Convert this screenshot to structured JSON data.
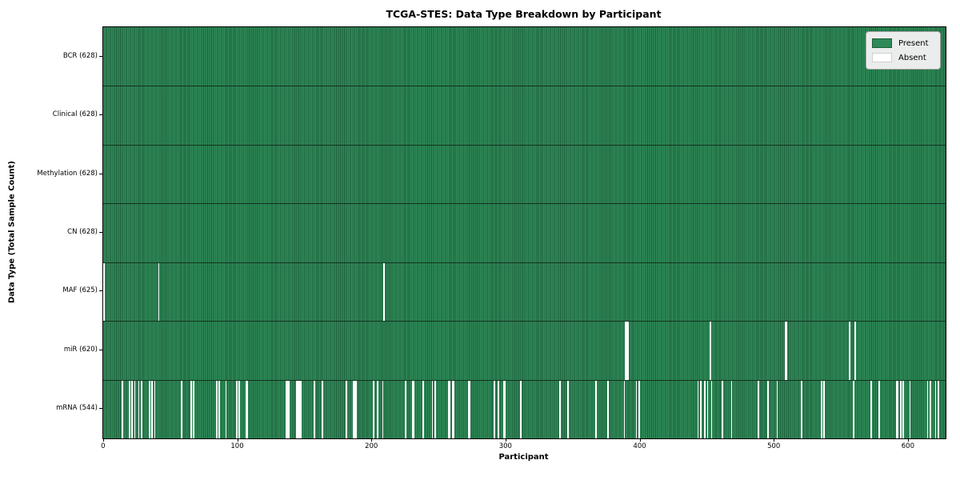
{
  "title": "TCGA-STES: Data Type Breakdown by Participant",
  "xlabel": "Participant",
  "ylabel": "Data Type (Total Sample Count)",
  "legend": {
    "present_label": "Present",
    "absent_label": "Absent"
  },
  "colors": {
    "present": "#2e8b57",
    "present_edge": "#1e5e3c",
    "absent": "#ffffff",
    "row_separator": "#14311f",
    "legend_bg": "#ebedec"
  },
  "chart_data": {
    "type": "heatmap",
    "title": "TCGA-STES: Data Type Breakdown by Participant",
    "xlabel": "Participant",
    "ylabel": "Data Type (Total Sample Count)",
    "legend_entries": [
      "Present",
      "Absent"
    ],
    "legend_position": "upper right",
    "x_ticks": [
      0,
      100,
      200,
      300,
      400,
      500,
      600
    ],
    "x_range": [
      -0.5,
      627.5
    ],
    "total_participants": 628,
    "rows": [
      {
        "name": "BCR",
        "label": "BCR (628)",
        "present_count": 628,
        "absent": []
      },
      {
        "name": "Clinical",
        "label": "Clinical (628)",
        "present_count": 628,
        "absent": []
      },
      {
        "name": "Methylation",
        "label": "Methylation (628)",
        "present_count": 628,
        "absent": []
      },
      {
        "name": "CN",
        "label": "CN (628)",
        "present_count": 628,
        "absent": []
      },
      {
        "name": "MAF",
        "label": "MAF (625)",
        "present_count": 625,
        "absent": [
          0,
          41,
          209
        ]
      },
      {
        "name": "miR",
        "label": "miR (620)",
        "present_count": 620,
        "absent": [
          389,
          390,
          391,
          452,
          508,
          509,
          556,
          560
        ]
      },
      {
        "name": "mRNA",
        "label": "mRNA (544)",
        "present_count": 544,
        "absent": [
          14,
          19,
          21,
          23,
          26,
          28,
          34,
          36,
          38,
          58,
          65,
          67,
          84,
          86,
          91,
          99,
          101,
          106,
          107,
          136,
          137,
          138,
          144,
          145,
          146,
          147,
          157,
          163,
          181,
          186,
          187,
          188,
          201,
          204,
          208,
          225,
          230,
          231,
          238,
          245,
          247,
          257,
          258,
          260,
          261,
          272,
          273,
          291,
          294,
          298,
          299,
          311,
          340,
          346,
          367,
          376,
          388,
          397,
          399,
          443,
          445,
          448,
          450,
          453,
          461,
          468,
          488,
          495,
          502,
          520,
          535,
          537,
          559,
          572,
          578,
          591,
          592,
          594,
          596,
          601,
          614,
          616,
          620,
          622
        ]
      }
    ]
  }
}
